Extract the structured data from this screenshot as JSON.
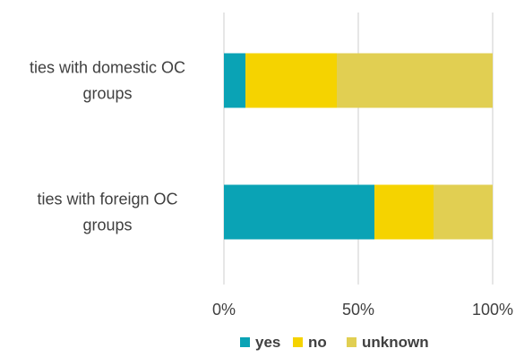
{
  "chart_data": {
    "type": "bar",
    "orientation": "horizontal",
    "stacked": "percent",
    "categories": [
      [
        "ties with domestic OC",
        "groups"
      ],
      [
        "ties with foreign OC",
        "groups"
      ]
    ],
    "series": [
      {
        "name": "yes",
        "color": "#0aa3b5",
        "values": [
          8,
          56
        ]
      },
      {
        "name": "no",
        "color": "#f5d300",
        "values": [
          34,
          22
        ]
      },
      {
        "name": "unknown",
        "color": "#e1cf52",
        "values": [
          58,
          22
        ]
      }
    ],
    "xticks": [
      "0%",
      "50%",
      "100%"
    ],
    "xlim": [
      0,
      100
    ],
    "grid": true,
    "legend": "bottom"
  }
}
